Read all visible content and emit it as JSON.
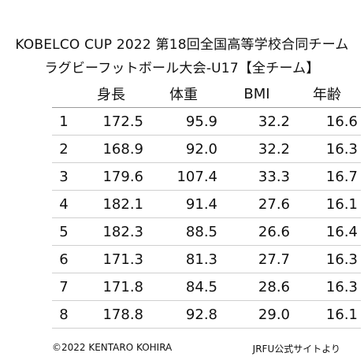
{
  "title_line1": "KOBELCO CUP 2022 第18回全国高等学校合同チーム",
  "title_line2": "ラグビーフットボール大会-U17【全チーム】",
  "footer_left": "©2022 KENTARO KOHIRA",
  "footer_right": "JRFU公式サイトより",
  "chart_data": {
    "type": "table",
    "columns": [
      "",
      "身長",
      "体重",
      "BMI",
      "年齢"
    ],
    "rows": [
      [
        "1",
        "172.5",
        "95.9",
        "32.2",
        "16.6"
      ],
      [
        "2",
        "168.9",
        "92.0",
        "32.2",
        "16.3"
      ],
      [
        "3",
        "179.6",
        "107.4",
        "33.3",
        "16.7"
      ],
      [
        "4",
        "182.1",
        "91.4",
        "27.6",
        "16.1"
      ],
      [
        "5",
        "182.3",
        "88.5",
        "26.6",
        "16.4"
      ],
      [
        "6",
        "171.3",
        "81.3",
        "27.7",
        "16.3"
      ],
      [
        "7",
        "171.8",
        "84.5",
        "28.6",
        "16.3"
      ],
      [
        "8",
        "178.8",
        "92.8",
        "29.0",
        "16.1"
      ]
    ]
  }
}
